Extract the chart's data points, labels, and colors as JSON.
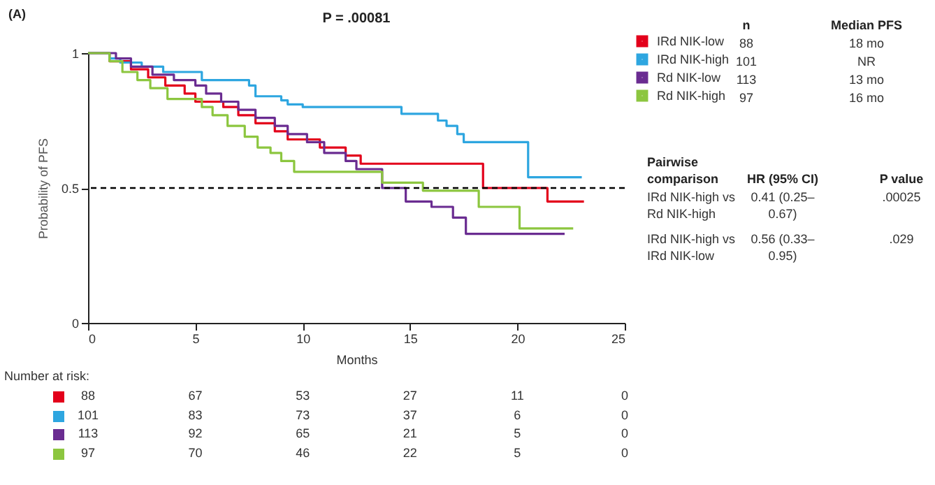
{
  "chart_data": {
    "type": "step",
    "title": "P = .00081",
    "xlabel": "Months",
    "ylabel": "Probability of PFS",
    "xlim": [
      0,
      25
    ],
    "xticks": [
      0,
      5,
      10,
      15,
      20,
      25
    ],
    "ylim": [
      0,
      1
    ],
    "yticks": [
      0,
      0.5,
      1
    ],
    "grid": false,
    "legend": "top right",
    "series": [
      {
        "name": "IRd NIK-low",
        "color": "#e3001b",
        "x": [
          0,
          1,
          2,
          2.8,
          3.6,
          4.5,
          5,
          6.3,
          7,
          7.8,
          8.7,
          9.3,
          10.8,
          12,
          12.7,
          18.4,
          21.4,
          23.1
        ],
        "values": [
          1,
          0.97,
          0.94,
          0.91,
          0.88,
          0.85,
          0.82,
          0.8,
          0.77,
          0.74,
          0.71,
          0.68,
          0.65,
          0.62,
          0.59,
          0.5,
          0.45,
          0.45
        ]
      },
      {
        "name": "IRd NIK-high",
        "color": "#2ea6e0",
        "x": [
          0,
          1,
          1.5,
          2.5,
          3.5,
          5.3,
          7.5,
          7.8,
          9,
          9.3,
          10,
          14.6,
          16.3,
          16.7,
          17.2,
          17.5,
          20.5,
          23
        ],
        "values": [
          1,
          0.98,
          0.965,
          0.95,
          0.93,
          0.9,
          0.88,
          0.84,
          0.825,
          0.81,
          0.8,
          0.775,
          0.75,
          0.73,
          0.7,
          0.67,
          0.54,
          0.54
        ]
      },
      {
        "name": "Rd NIK-low",
        "color": "#6a2c91",
        "x": [
          0,
          1.3,
          2,
          3,
          4,
          5,
          5.5,
          6.2,
          7,
          7.8,
          8.7,
          9.3,
          10.2,
          11,
          12,
          12.5,
          13.7,
          14.8,
          16,
          17,
          17.6,
          22.2
        ],
        "values": [
          1,
          0.98,
          0.95,
          0.92,
          0.9,
          0.88,
          0.85,
          0.82,
          0.79,
          0.76,
          0.73,
          0.7,
          0.67,
          0.63,
          0.6,
          0.57,
          0.5,
          0.45,
          0.43,
          0.39,
          0.33,
          0.33
        ]
      },
      {
        "name": "Rd NIK-high",
        "color": "#8cc63f",
        "x": [
          0,
          1,
          1.6,
          2.3,
          2.9,
          3.7,
          5.3,
          5.8,
          6.5,
          7.3,
          7.9,
          8.5,
          9,
          9.6,
          13.7,
          15.6,
          18.2,
          20.1,
          22.6
        ],
        "values": [
          1,
          0.97,
          0.93,
          0.9,
          0.87,
          0.83,
          0.8,
          0.77,
          0.73,
          0.69,
          0.65,
          0.63,
          0.6,
          0.56,
          0.52,
          0.49,
          0.43,
          0.35,
          0.35
        ]
      }
    ],
    "ref_lines": [
      {
        "axis": "y",
        "value": 0.5,
        "line_style": "dashed",
        "color": "#000000"
      }
    ],
    "annotations": [
      "(A)",
      "n",
      "Median PFS",
      "88",
      "18 mo",
      "101",
      "NR",
      "113",
      "13 mo",
      "97",
      "16 mo",
      "Pairwise comparison",
      "HR (95% CI)",
      "P value",
      "IRd NIK-high vs Rd NIK-high",
      "0.41 (0.25–0.67)",
      ".00025",
      "IRd NIK-high vs IRd NIK-low",
      "0.56 (0.33–0.95)",
      ".029",
      "Number at risk:",
      "88",
      "67",
      "53",
      "27",
      "11",
      "0",
      "101",
      "83",
      "73",
      "37",
      "6",
      "0",
      "113",
      "92",
      "65",
      "21",
      "5",
      "0",
      "97",
      "70",
      "46",
      "22",
      "5",
      "0"
    ]
  }
}
